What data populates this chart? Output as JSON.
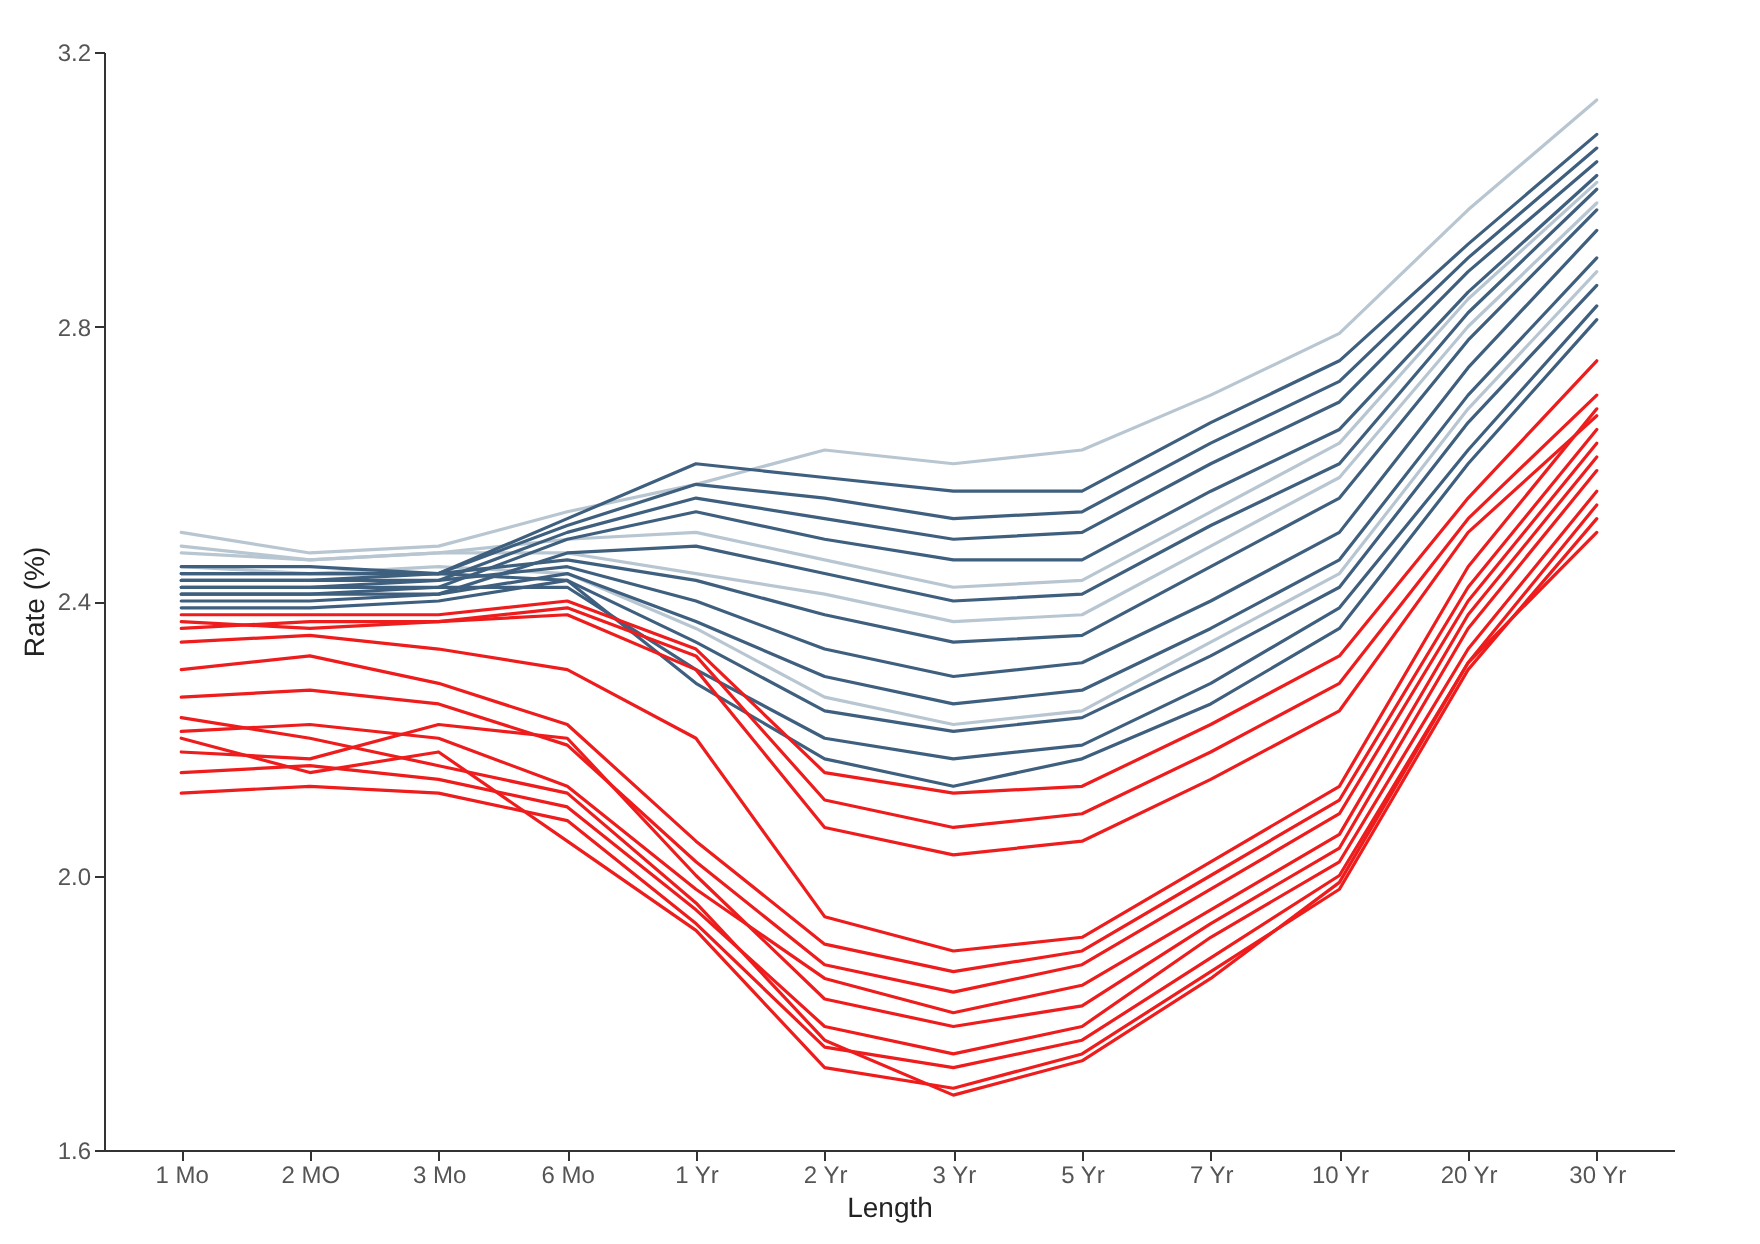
{
  "chart_data": {
    "type": "line",
    "xlabel": "Length",
    "ylabel": "Rate (%)",
    "line_style": "solid",
    "categories": [
      "1 Mo",
      "2 MO",
      "3 Mo",
      "6 Mo",
      "1 Yr",
      "2 Yr",
      "3 Yr",
      "5 Yr",
      "7 Yr",
      "10 Yr",
      "20 Yr",
      "30 Yr"
    ],
    "ylim": [
      1.6,
      3.2
    ],
    "yticks": [
      1.6,
      {
        "value": 2,
        "label": "2.0"
      },
      2.4,
      2.8,
      3.2
    ],
    "series": [
      {
        "color": "#b8c6d2",
        "values": [
          2.5,
          2.47,
          2.48,
          2.53,
          2.57,
          2.62,
          2.6,
          2.62,
          2.7,
          2.79,
          2.97,
          3.13
        ]
      },
      {
        "color": "#b8c6d2",
        "values": [
          2.47,
          2.46,
          2.47,
          2.49,
          2.5,
          2.46,
          2.42,
          2.43,
          2.53,
          2.63,
          2.84,
          3.01
        ]
      },
      {
        "color": "#b8c6d2",
        "values": [
          2.48,
          2.46,
          2.47,
          2.47,
          2.44,
          2.41,
          2.37,
          2.38,
          2.48,
          2.58,
          2.8,
          2.98
        ]
      },
      {
        "color": "#b8c6d2",
        "values": [
          2.45,
          2.44,
          2.45,
          2.44,
          2.36,
          2.26,
          2.22,
          2.24,
          2.34,
          2.44,
          2.68,
          2.88
        ]
      },
      {
        "color": "#3f5f7f",
        "values": [
          2.45,
          2.45,
          2.44,
          2.52,
          2.6,
          2.58,
          2.56,
          2.56,
          2.66,
          2.75,
          2.92,
          3.08
        ]
      },
      {
        "color": "#3f5f7f",
        "values": [
          2.44,
          2.44,
          2.44,
          2.51,
          2.57,
          2.55,
          2.52,
          2.53,
          2.63,
          2.72,
          2.9,
          3.06
        ]
      },
      {
        "color": "#3f5f7f",
        "values": [
          2.43,
          2.43,
          2.43,
          2.5,
          2.55,
          2.52,
          2.49,
          2.5,
          2.6,
          2.69,
          2.88,
          3.04
        ]
      },
      {
        "color": "#3f5f7f",
        "values": [
          2.42,
          2.42,
          2.42,
          2.49,
          2.53,
          2.49,
          2.46,
          2.46,
          2.56,
          2.65,
          2.85,
          3.02
        ]
      },
      {
        "color": "#3f5f7f",
        "values": [
          2.41,
          2.41,
          2.41,
          2.47,
          2.48,
          2.44,
          2.4,
          2.41,
          2.51,
          2.6,
          2.82,
          3.0
        ]
      },
      {
        "color": "#3f5f7f",
        "values": [
          2.44,
          2.44,
          2.44,
          2.46,
          2.43,
          2.38,
          2.34,
          2.35,
          2.45,
          2.55,
          2.78,
          2.97
        ]
      },
      {
        "color": "#3f5f7f",
        "values": [
          2.42,
          2.42,
          2.43,
          2.45,
          2.4,
          2.33,
          2.29,
          2.31,
          2.4,
          2.5,
          2.74,
          2.94
        ]
      },
      {
        "color": "#3f5f7f",
        "values": [
          2.4,
          2.4,
          2.41,
          2.44,
          2.37,
          2.29,
          2.25,
          2.27,
          2.36,
          2.46,
          2.7,
          2.9
        ]
      },
      {
        "color": "#3f5f7f",
        "values": [
          2.39,
          2.39,
          2.4,
          2.43,
          2.34,
          2.24,
          2.21,
          2.23,
          2.32,
          2.42,
          2.66,
          2.86
        ]
      },
      {
        "color": "#3f5f7f",
        "values": [
          2.41,
          2.41,
          2.42,
          2.42,
          2.3,
          2.2,
          2.17,
          2.19,
          2.28,
          2.39,
          2.62,
          2.83
        ]
      },
      {
        "color": "#3f5f7f",
        "values": [
          2.43,
          2.43,
          2.44,
          2.43,
          2.28,
          2.17,
          2.13,
          2.17,
          2.25,
          2.36,
          2.6,
          2.81
        ]
      },
      {
        "color": "#ee1c1c",
        "values": [
          2.38,
          2.38,
          2.38,
          2.4,
          2.33,
          2.15,
          2.12,
          2.13,
          2.22,
          2.32,
          2.55,
          2.75
        ]
      },
      {
        "color": "#ee1c1c",
        "values": [
          2.36,
          2.37,
          2.37,
          2.39,
          2.32,
          2.11,
          2.07,
          2.09,
          2.18,
          2.28,
          2.52,
          2.7
        ]
      },
      {
        "color": "#ee1c1c",
        "values": [
          2.37,
          2.36,
          2.37,
          2.38,
          2.3,
          2.07,
          2.03,
          2.05,
          2.14,
          2.24,
          2.5,
          2.67
        ]
      },
      {
        "color": "#ee1c1c",
        "values": [
          2.34,
          2.35,
          2.33,
          2.3,
          2.2,
          1.94,
          1.89,
          1.91,
          2.02,
          2.13,
          2.45,
          2.68
        ]
      },
      {
        "color": "#ee1c1c",
        "values": [
          2.3,
          2.32,
          2.28,
          2.22,
          2.05,
          1.9,
          1.86,
          1.89,
          2.0,
          2.11,
          2.42,
          2.65
        ]
      },
      {
        "color": "#ee1c1c",
        "values": [
          2.26,
          2.27,
          2.25,
          2.19,
          2.02,
          1.87,
          1.83,
          1.87,
          1.98,
          2.09,
          2.4,
          2.63
        ]
      },
      {
        "color": "#ee1c1c",
        "values": [
          2.21,
          2.22,
          2.2,
          2.13,
          1.98,
          1.85,
          1.8,
          1.84,
          1.95,
          2.06,
          2.38,
          2.61
        ]
      },
      {
        "color": "#ee1c1c",
        "values": [
          2.18,
          2.17,
          2.22,
          2.2,
          2.0,
          1.82,
          1.78,
          1.81,
          1.93,
          2.04,
          2.36,
          2.59
        ]
      },
      {
        "color": "#ee1c1c",
        "values": [
          2.15,
          2.16,
          2.14,
          2.1,
          1.95,
          1.78,
          1.74,
          1.78,
          1.91,
          2.02,
          2.33,
          2.56
        ]
      },
      {
        "color": "#ee1c1c",
        "values": [
          2.12,
          2.13,
          2.12,
          2.08,
          1.93,
          1.75,
          1.72,
          1.76,
          1.88,
          2.0,
          2.31,
          2.54
        ]
      },
      {
        "color": "#ee1c1c",
        "values": [
          2.2,
          2.15,
          2.18,
          2.05,
          1.92,
          1.72,
          1.69,
          1.74,
          1.86,
          1.98,
          2.3,
          2.52
        ]
      },
      {
        "color": "#ee1c1c",
        "values": [
          2.23,
          2.2,
          2.16,
          2.12,
          1.96,
          1.76,
          1.68,
          1.73,
          1.85,
          1.99,
          2.31,
          2.5
        ]
      }
    ]
  }
}
